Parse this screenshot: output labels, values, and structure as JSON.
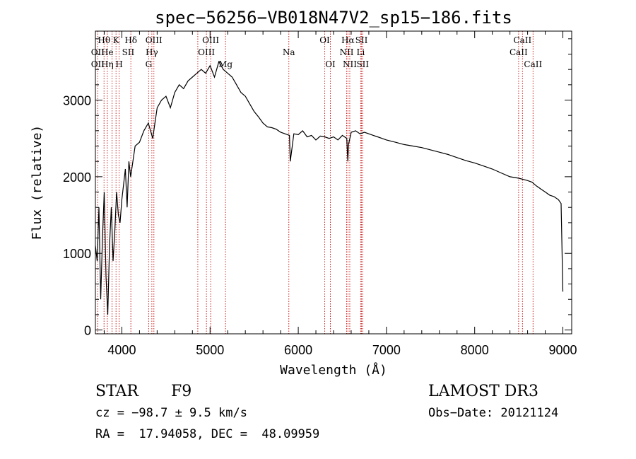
{
  "chart_data": {
    "type": "line",
    "title": "spec−56256−VB018N47V2_sp15−186.fits",
    "xlabel": "Wavelength (Å)",
    "ylabel": "Flux (relative)",
    "xlim": [
      3700,
      9100
    ],
    "ylim": [
      -50,
      3900
    ],
    "x_ticks": [
      4000,
      5000,
      6000,
      7000,
      8000,
      9000
    ],
    "y_ticks": [
      0,
      1000,
      2000,
      3000
    ],
    "series": [
      {
        "name": "flux",
        "x": [
          3700,
          3720,
          3740,
          3760,
          3780,
          3800,
          3820,
          3840,
          3860,
          3880,
          3900,
          3920,
          3940,
          3960,
          3980,
          4000,
          4020,
          4040,
          4060,
          4080,
          4100,
          4150,
          4200,
          4250,
          4300,
          4350,
          4400,
          4450,
          4500,
          4550,
          4600,
          4650,
          4700,
          4750,
          4800,
          4850,
          4900,
          4950,
          5000,
          5050,
          5100,
          5150,
          5200,
          5250,
          5300,
          5350,
          5400,
          5450,
          5500,
          5550,
          5600,
          5650,
          5700,
          5750,
          5800,
          5850,
          5900,
          5910,
          5950,
          6000,
          6050,
          6100,
          6150,
          6200,
          6250,
          6300,
          6350,
          6400,
          6450,
          6500,
          6550,
          6562,
          6570,
          6600,
          6650,
          6700,
          6750,
          6800,
          6850,
          6900,
          6950,
          7000,
          7100,
          7200,
          7300,
          7400,
          7500,
          7600,
          7700,
          7800,
          7900,
          8000,
          8100,
          8200,
          8300,
          8400,
          8500,
          8600,
          8650,
          8700,
          8750,
          8800,
          8850,
          8900,
          8950,
          8980,
          9000
        ],
        "y": [
          1100,
          900,
          1600,
          400,
          1200,
          1800,
          700,
          200,
          1100,
          1600,
          900,
          1300,
          1800,
          1500,
          1400,
          1700,
          1900,
          2100,
          1600,
          2200,
          2000,
          2400,
          2450,
          2600,
          2700,
          2500,
          2900,
          3000,
          3050,
          2900,
          3100,
          3200,
          3150,
          3250,
          3300,
          3350,
          3400,
          3350,
          3450,
          3300,
          3500,
          3400,
          3350,
          3300,
          3200,
          3100,
          3050,
          2950,
          2850,
          2780,
          2700,
          2650,
          2640,
          2620,
          2580,
          2560,
          2540,
          2200,
          2560,
          2550,
          2600,
          2520,
          2540,
          2480,
          2530,
          2520,
          2500,
          2520,
          2480,
          2540,
          2500,
          2200,
          2420,
          2580,
          2600,
          2560,
          2580,
          2560,
          2540,
          2520,
          2500,
          2480,
          2450,
          2420,
          2400,
          2380,
          2350,
          2320,
          2290,
          2250,
          2210,
          2180,
          2140,
          2100,
          2050,
          2000,
          1980,
          1950,
          1930,
          1880,
          1840,
          1800,
          1760,
          1740,
          1700,
          1650,
          500
        ]
      }
    ],
    "line_markers": [
      {
        "label": "Hθ",
        "x": 3798,
        "row": 1
      },
      {
        "label": "OII",
        "x": 3727,
        "row": 2
      },
      {
        "label": "OII",
        "x": 3727,
        "row": 3
      },
      {
        "label": "He",
        "x": 3835,
        "row": 2
      },
      {
        "label": "Hη",
        "x": 3835,
        "row": 3
      },
      {
        "label": "K",
        "x": 3934,
        "row": 1
      },
      {
        "label": "SII",
        "x": 4072,
        "row": 2
      },
      {
        "label": "H",
        "x": 3969,
        "row": 3
      },
      {
        "label": "Hδ",
        "x": 4102,
        "row": 1
      },
      {
        "label": "OIII",
        "x": 4363,
        "row": 1
      },
      {
        "label": "Hγ",
        "x": 4340,
        "row": 2
      },
      {
        "label": "G",
        "x": 4304,
        "row": 3
      },
      {
        "label": "OIII",
        "x": 5007,
        "row": 1
      },
      {
        "label": "OIII",
        "x": 4959,
        "row": 2
      },
      {
        "label": "Mg",
        "x": 5175,
        "row": 3
      },
      {
        "label": "Na",
        "x": 5893,
        "row": 2
      },
      {
        "label": "OI",
        "x": 6300,
        "row": 1
      },
      {
        "label": "OI",
        "x": 6364,
        "row": 3
      },
      {
        "label": "Hα",
        "x": 6563,
        "row": 1
      },
      {
        "label": "SII",
        "x": 6717,
        "row": 1
      },
      {
        "label": "NII",
        "x": 6548,
        "row": 2
      },
      {
        "label": "Li",
        "x": 6708,
        "row": 2
      },
      {
        "label": "NII",
        "x": 6584,
        "row": 3
      },
      {
        "label": "SII",
        "x": 6731,
        "row": 3
      },
      {
        "label": "CaII",
        "x": 8542,
        "row": 1
      },
      {
        "label": "CaII",
        "x": 8498,
        "row": 2
      },
      {
        "label": "CaII",
        "x": 8662,
        "row": 3
      }
    ],
    "marker_lines": [
      3727,
      3798,
      3835,
      3889,
      3934,
      3969,
      4102,
      4304,
      4340,
      4363,
      4861,
      4959,
      5007,
      5175,
      5893,
      6300,
      6364,
      6548,
      6563,
      6584,
      6708,
      6717,
      6731,
      8498,
      8542,
      8662
    ]
  },
  "info": {
    "class": "STAR",
    "subclass": "F9",
    "survey": "LAMOST DR3",
    "cz": "cz = −98.7 ± 9.5 km/s",
    "obs_date": "Obs−Date: 20121124",
    "radec": "RA =  17.94058, DEC =  48.09959"
  },
  "colors": {
    "axis": "#000000",
    "spectrum": "#000000",
    "marker": "#cc2222"
  }
}
